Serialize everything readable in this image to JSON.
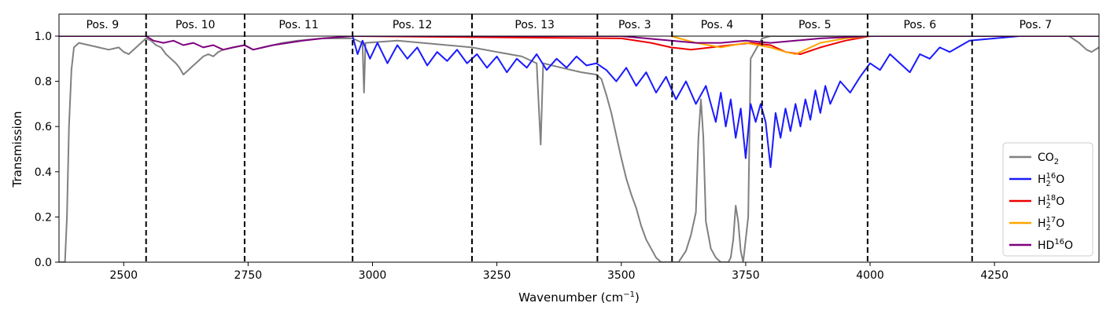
{
  "chart_data": {
    "type": "line",
    "title": "",
    "xlabel": "Wavenumber (cm",
    "xlabel_sup": "−1",
    "xlabel_close": ")",
    "ylabel": "Transmission",
    "xlim": [
      2370,
      4460
    ],
    "ylim": [
      0.0,
      1.0
    ],
    "xticks": [
      "2500",
      "2750",
      "3000",
      "3250",
      "3500",
      "3750",
      "4000",
      "4250"
    ],
    "xtick_values": [
      2500,
      2750,
      3000,
      3250,
      3500,
      3750,
      4000,
      4250
    ],
    "yticks": [
      "0.0",
      "0.2",
      "0.4",
      "0.6",
      "0.8",
      "1.0"
    ],
    "ytick_values": [
      0.0,
      0.2,
      0.4,
      0.6,
      0.8,
      1.0
    ],
    "grid": false,
    "legend_position": "right, lower",
    "position_boundaries": [
      2545,
      2743,
      2960,
      3200,
      3452,
      3602,
      3783,
      3995,
      4205
    ],
    "positions": [
      {
        "label": "Pos. 9",
        "from": 2370,
        "to": 2545
      },
      {
        "label": "Pos. 10",
        "from": 2545,
        "to": 2743
      },
      {
        "label": "Pos. 11",
        "from": 2743,
        "to": 2960
      },
      {
        "label": "Pos. 12",
        "from": 2960,
        "to": 3200
      },
      {
        "label": "Pos. 13",
        "from": 3200,
        "to": 3452
      },
      {
        "label": "Pos. 3",
        "from": 3452,
        "to": 3602
      },
      {
        "label": "Pos. 4",
        "from": 3602,
        "to": 3783
      },
      {
        "label": "Pos. 5",
        "from": 3783,
        "to": 3995
      },
      {
        "label": "Pos. 6",
        "from": 3995,
        "to": 4205
      },
      {
        "label": "Pos. 7",
        "from": 4205,
        "to": 4460
      }
    ],
    "series": [
      {
        "name": "CO",
        "sub": "2",
        "sup": "",
        "tail": "",
        "color": "#808080",
        "points": [
          [
            2370,
            0.0
          ],
          [
            2382,
            0.0
          ],
          [
            2386,
            0.2
          ],
          [
            2390,
            0.6
          ],
          [
            2395,
            0.85
          ],
          [
            2400,
            0.95
          ],
          [
            2410,
            0.97
          ],
          [
            2430,
            0.96
          ],
          [
            2450,
            0.95
          ],
          [
            2470,
            0.94
          ],
          [
            2490,
            0.95
          ],
          [
            2500,
            0.93
          ],
          [
            2510,
            0.92
          ],
          [
            2520,
            0.94
          ],
          [
            2530,
            0.96
          ],
          [
            2545,
            0.99
          ],
          [
            2555,
            0.98
          ],
          [
            2565,
            0.96
          ],
          [
            2575,
            0.95
          ],
          [
            2585,
            0.92
          ],
          [
            2595,
            0.9
          ],
          [
            2605,
            0.88
          ],
          [
            2612,
            0.86
          ],
          [
            2620,
            0.83
          ],
          [
            2630,
            0.85
          ],
          [
            2640,
            0.87
          ],
          [
            2650,
            0.89
          ],
          [
            2660,
            0.91
          ],
          [
            2670,
            0.92
          ],
          [
            2680,
            0.91
          ],
          [
            2690,
            0.93
          ],
          [
            2700,
            0.94
          ],
          [
            2720,
            0.95
          ],
          [
            2743,
            0.96
          ],
          [
            2760,
            0.94
          ],
          [
            2780,
            0.95
          ],
          [
            2800,
            0.96
          ],
          [
            2820,
            0.97
          ],
          [
            2850,
            0.98
          ],
          [
            2900,
            0.99
          ],
          [
            2960,
            0.99
          ],
          [
            2980,
            0.97
          ],
          [
            2983,
            0.75
          ],
          [
            2986,
            0.97
          ],
          [
            3050,
            0.98
          ],
          [
            3100,
            0.97
          ],
          [
            3150,
            0.96
          ],
          [
            3200,
            0.95
          ],
          [
            3250,
            0.93
          ],
          [
            3300,
            0.91
          ],
          [
            3330,
            0.88
          ],
          [
            3338,
            0.52
          ],
          [
            3343,
            0.88
          ],
          [
            3380,
            0.86
          ],
          [
            3420,
            0.84
          ],
          [
            3450,
            0.83
          ],
          [
            3460,
            0.81
          ],
          [
            3470,
            0.74
          ],
          [
            3480,
            0.66
          ],
          [
            3490,
            0.56
          ],
          [
            3500,
            0.46
          ],
          [
            3510,
            0.37
          ],
          [
            3520,
            0.3
          ],
          [
            3530,
            0.24
          ],
          [
            3540,
            0.16
          ],
          [
            3550,
            0.1
          ],
          [
            3560,
            0.06
          ],
          [
            3570,
            0.02
          ],
          [
            3580,
            0.0
          ],
          [
            3602,
            0.0
          ],
          [
            3615,
            0.0
          ],
          [
            3630,
            0.05
          ],
          [
            3640,
            0.12
          ],
          [
            3650,
            0.22
          ],
          [
            3655,
            0.55
          ],
          [
            3660,
            0.72
          ],
          [
            3665,
            0.55
          ],
          [
            3670,
            0.18
          ],
          [
            3680,
            0.06
          ],
          [
            3690,
            0.02
          ],
          [
            3700,
            0.0
          ],
          [
            3715,
            0.0
          ],
          [
            3720,
            0.02
          ],
          [
            3725,
            0.1
          ],
          [
            3730,
            0.25
          ],
          [
            3735,
            0.18
          ],
          [
            3740,
            0.05
          ],
          [
            3745,
            0.0
          ],
          [
            3755,
            0.2
          ],
          [
            3760,
            0.9
          ],
          [
            3783,
            0.99
          ],
          [
            3800,
            1.0
          ],
          [
            4400,
            1.0
          ],
          [
            4420,
            0.97
          ],
          [
            4435,
            0.94
          ],
          [
            4445,
            0.93
          ],
          [
            4460,
            0.95
          ]
        ]
      },
      {
        "name": "H",
        "sub": "2",
        "sup": "16",
        "tail": "O",
        "color": "#1a1aff",
        "points": [
          [
            2960,
            1.0
          ],
          [
            2970,
            0.92
          ],
          [
            2980,
            0.98
          ],
          [
            2995,
            0.9
          ],
          [
            3010,
            0.97
          ],
          [
            3030,
            0.88
          ],
          [
            3050,
            0.96
          ],
          [
            3070,
            0.9
          ],
          [
            3090,
            0.95
          ],
          [
            3110,
            0.87
          ],
          [
            3130,
            0.93
          ],
          [
            3150,
            0.89
          ],
          [
            3170,
            0.94
          ],
          [
            3190,
            0.88
          ],
          [
            3210,
            0.92
          ],
          [
            3230,
            0.86
          ],
          [
            3250,
            0.91
          ],
          [
            3270,
            0.84
          ],
          [
            3290,
            0.9
          ],
          [
            3310,
            0.86
          ],
          [
            3330,
            0.92
          ],
          [
            3350,
            0.85
          ],
          [
            3370,
            0.9
          ],
          [
            3390,
            0.86
          ],
          [
            3410,
            0.91
          ],
          [
            3430,
            0.87
          ],
          [
            3450,
            0.88
          ],
          [
            3470,
            0.85
          ],
          [
            3490,
            0.8
          ],
          [
            3510,
            0.86
          ],
          [
            3530,
            0.78
          ],
          [
            3550,
            0.84
          ],
          [
            3570,
            0.75
          ],
          [
            3590,
            0.82
          ],
          [
            3610,
            0.72
          ],
          [
            3630,
            0.8
          ],
          [
            3650,
            0.7
          ],
          [
            3670,
            0.78
          ],
          [
            3690,
            0.62
          ],
          [
            3700,
            0.75
          ],
          [
            3710,
            0.6
          ],
          [
            3720,
            0.72
          ],
          [
            3730,
            0.55
          ],
          [
            3740,
            0.68
          ],
          [
            3750,
            0.46
          ],
          [
            3760,
            0.7
          ],
          [
            3770,
            0.62
          ],
          [
            3780,
            0.7
          ],
          [
            3790,
            0.62
          ],
          [
            3800,
            0.42
          ],
          [
            3810,
            0.66
          ],
          [
            3820,
            0.55
          ],
          [
            3830,
            0.68
          ],
          [
            3840,
            0.58
          ],
          [
            3850,
            0.7
          ],
          [
            3860,
            0.6
          ],
          [
            3870,
            0.72
          ],
          [
            3880,
            0.63
          ],
          [
            3890,
            0.76
          ],
          [
            3900,
            0.66
          ],
          [
            3910,
            0.78
          ],
          [
            3920,
            0.7
          ],
          [
            3940,
            0.8
          ],
          [
            3960,
            0.75
          ],
          [
            3980,
            0.82
          ],
          [
            4000,
            0.88
          ],
          [
            4020,
            0.85
          ],
          [
            4040,
            0.92
          ],
          [
            4060,
            0.88
          ],
          [
            4080,
            0.84
          ],
          [
            4100,
            0.92
          ],
          [
            4120,
            0.9
          ],
          [
            4140,
            0.95
          ],
          [
            4160,
            0.93
          ],
          [
            4200,
            0.98
          ],
          [
            4250,
            0.99
          ],
          [
            4300,
            1.0
          ],
          [
            4460,
            1.0
          ]
        ]
      },
      {
        "name": "H",
        "sub": "2",
        "sup": "18",
        "tail": "O",
        "color": "#ee0000",
        "points": [
          [
            2960,
            1.0
          ],
          [
            3500,
            0.99
          ],
          [
            3560,
            0.97
          ],
          [
            3600,
            0.95
          ],
          [
            3640,
            0.94
          ],
          [
            3680,
            0.95
          ],
          [
            3720,
            0.96
          ],
          [
            3760,
            0.97
          ],
          [
            3800,
            0.96
          ],
          [
            3830,
            0.93
          ],
          [
            3860,
            0.92
          ],
          [
            3900,
            0.95
          ],
          [
            3950,
            0.98
          ],
          [
            4000,
            1.0
          ],
          [
            4460,
            1.0
          ]
        ]
      },
      {
        "name": "H",
        "sub": "2",
        "sup": "17",
        "tail": "O",
        "color": "#ffa500",
        "points": [
          [
            3600,
            1.0
          ],
          [
            3650,
            0.97
          ],
          [
            3700,
            0.95
          ],
          [
            3750,
            0.97
          ],
          [
            3800,
            0.95
          ],
          [
            3830,
            0.93
          ],
          [
            3850,
            0.92
          ],
          [
            3870,
            0.94
          ],
          [
            3900,
            0.97
          ],
          [
            3950,
            0.99
          ],
          [
            4000,
            1.0
          ],
          [
            4460,
            1.0
          ]
        ]
      },
      {
        "name": "HD",
        "sub": "",
        "sup": "16",
        "tail": "O",
        "color": "#7f007f",
        "points": [
          [
            2370,
            1.0
          ],
          [
            2545,
            1.0
          ],
          [
            2560,
            0.98
          ],
          [
            2580,
            0.97
          ],
          [
            2600,
            0.98
          ],
          [
            2620,
            0.96
          ],
          [
            2640,
            0.97
          ],
          [
            2660,
            0.95
          ],
          [
            2680,
            0.96
          ],
          [
            2700,
            0.94
          ],
          [
            2720,
            0.95
          ],
          [
            2743,
            0.96
          ],
          [
            2760,
            0.94
          ],
          [
            2780,
            0.95
          ],
          [
            2800,
            0.96
          ],
          [
            2830,
            0.97
          ],
          [
            2860,
            0.98
          ],
          [
            2900,
            0.99
          ],
          [
            2960,
            1.0
          ],
          [
            3500,
            1.0
          ],
          [
            3600,
            0.98
          ],
          [
            3650,
            0.97
          ],
          [
            3700,
            0.97
          ],
          [
            3750,
            0.98
          ],
          [
            3800,
            0.97
          ],
          [
            3850,
            0.98
          ],
          [
            3900,
            0.99
          ],
          [
            4000,
            1.0
          ],
          [
            4460,
            1.0
          ]
        ]
      }
    ]
  }
}
